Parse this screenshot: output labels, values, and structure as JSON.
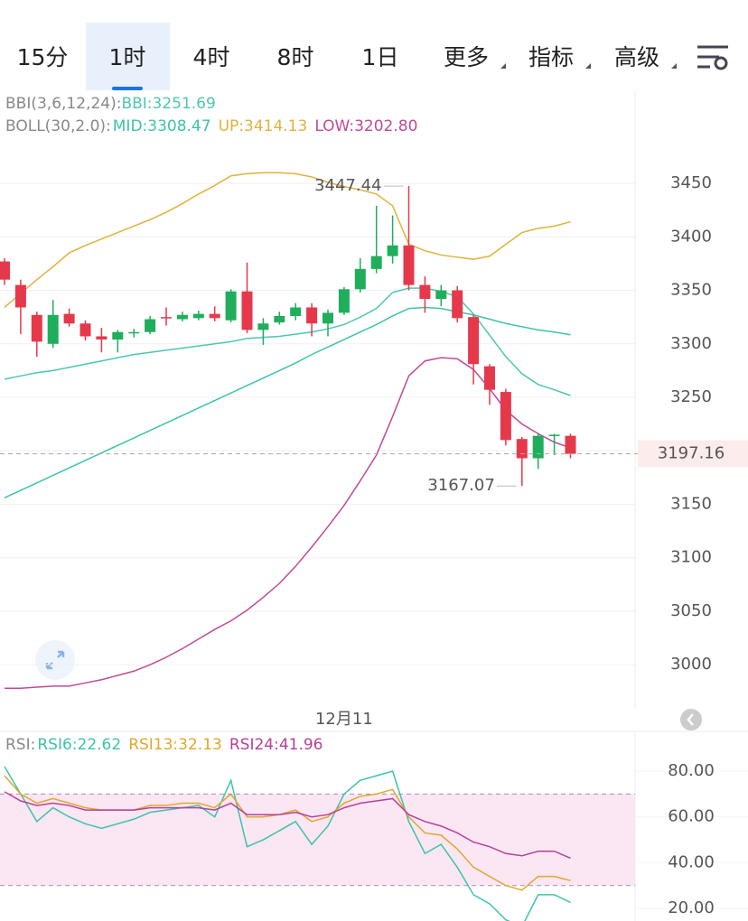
{
  "tabs": {
    "items": [
      "15分",
      "1时",
      "4时",
      "8时",
      "1日",
      "更多",
      "指标",
      "高级"
    ],
    "selected": 1
  },
  "chart_data": [
    {
      "type": "candlestick",
      "indicator_label": "BBI(3,6,12,24):",
      "boll_label": "BOLL(30,2.0):",
      "categories": [
        null,
        null,
        null,
        null,
        null,
        null,
        null,
        null,
        null,
        null,
        null,
        null,
        null,
        null,
        null,
        null,
        null,
        null,
        null,
        null,
        null,
        "12月11",
        null,
        null,
        null,
        null,
        null,
        null,
        null,
        null,
        null,
        null,
        null,
        null,
        null,
        null
      ],
      "open": [
        3377,
        3355,
        3327,
        3300,
        3328,
        3319,
        3307,
        3304,
        3310,
        3311,
        3325,
        3323,
        3324,
        3328,
        3322,
        3349,
        3313,
        3320,
        3326,
        3334,
        3319,
        3329,
        3351,
        3370,
        3382,
        3392,
        3355,
        3342,
        3350,
        3325,
        3279,
        3255,
        3211,
        3193,
        3214,
        3214
      ],
      "high": [
        3380,
        3360,
        3330,
        3341,
        3333,
        3322,
        3315,
        3313,
        3314,
        3326,
        3334,
        3330,
        3331,
        3335,
        3351,
        3376,
        3324,
        3330,
        3338,
        3338,
        3332,
        3353,
        3380,
        3429,
        3420,
        3447.44,
        3363,
        3355,
        3354,
        3327,
        3281,
        3258,
        3213,
        3216,
        3216,
        3216
      ],
      "low": [
        3355,
        3309,
        3288,
        3296,
        3316,
        3303,
        3292,
        3292,
        3306,
        3309,
        3317,
        3321,
        3322,
        3321,
        3320,
        3310,
        3299,
        3318,
        3322,
        3307,
        3307,
        3327,
        3348,
        3366,
        3375,
        3350,
        3329,
        3335,
        3320,
        3262,
        3243,
        3205,
        3167.07,
        3183,
        3196,
        3193
      ],
      "close": [
        3360,
        3334,
        3302,
        3327,
        3319,
        3307,
        3304,
        3311,
        3311,
        3323,
        3324,
        3327,
        3328,
        3324,
        3349,
        3313,
        3319,
        3326,
        3334,
        3319,
        3329,
        3351,
        3370,
        3382,
        3392,
        3355,
        3342,
        3350,
        3324,
        3281,
        3257,
        3210,
        3193,
        3214,
        3215,
        3197.16
      ],
      "up_color": "#1fae5c",
      "down_color": "#e5394b",
      "series": [
        {
          "name": "BBI:3251.69",
          "color": "#4cc7b0",
          "values": [
            3267,
            3270,
            3273,
            3275,
            3278,
            3281,
            3284,
            3287,
            3290,
            3292,
            3294,
            3296,
            3298,
            3300,
            3302,
            3305,
            3306,
            3307,
            3309,
            3311,
            3314,
            3318,
            3325,
            3333,
            3348,
            3352,
            3352,
            3349,
            3344,
            3328,
            3308,
            3288,
            3272,
            3262,
            3257,
            3251.69
          ]
        },
        {
          "name": "MID:3308.47",
          "color": "#3cc4a8",
          "values": [
            3156,
            3163,
            3170,
            3177,
            3184,
            3191,
            3198,
            3205,
            3212,
            3219,
            3226,
            3233,
            3240,
            3247,
            3254,
            3261,
            3268,
            3275,
            3282,
            3290,
            3297,
            3304,
            3311,
            3318,
            3326,
            3333,
            3334,
            3333,
            3330,
            3327,
            3323,
            3319,
            3316,
            3313,
            3311,
            3308.47
          ]
        },
        {
          "name": "UP:3414.13",
          "color": "#e0b23a",
          "values": [
            3334,
            3347,
            3360,
            3372,
            3385,
            3392,
            3398,
            3404,
            3410,
            3416,
            3423,
            3431,
            3440,
            3448,
            3457,
            3459,
            3460,
            3460,
            3459,
            3456,
            3451,
            3447,
            3444,
            3440,
            3429,
            3393,
            3387,
            3383,
            3381,
            3379,
            3382,
            3393,
            3404,
            3408,
            3410,
            3414.13
          ]
        },
        {
          "name": "LOW:3202.80",
          "color": "#c04a98",
          "values": [
            2978,
            2978,
            2979,
            2980,
            2980,
            2983,
            2986,
            2990,
            2994,
            3000,
            3007,
            3015,
            3024,
            3033,
            3041,
            3051,
            3063,
            3076,
            3092,
            3110,
            3129,
            3149,
            3172,
            3196,
            3232,
            3270,
            3284,
            3287,
            3286,
            3276,
            3258,
            3238,
            3225,
            3216,
            3208,
            3202.8
          ]
        }
      ],
      "last_price": 3197.16,
      "ylim": [
        2963,
        3537
      ],
      "yticks": [
        3000,
        3050,
        3100,
        3150,
        3200,
        3250,
        3300,
        3350,
        3400,
        3450
      ],
      "grid": true
    },
    {
      "type": "line",
      "title": "RSI:",
      "series": [
        {
          "name": "RSI6:22.62",
          "color": "#3cc4a8",
          "values": [
            82,
            70,
            58,
            64,
            60,
            57,
            55,
            57,
            59,
            62,
            63,
            64,
            65,
            60,
            76,
            47,
            50,
            54,
            58,
            48,
            56,
            70,
            76,
            78,
            80,
            58,
            44,
            48,
            38,
            26,
            22,
            15,
            12,
            26,
            26,
            22.62
          ]
        },
        {
          "name": "RSI13:32.13",
          "color": "#e0a82a",
          "values": [
            78,
            70,
            66,
            68,
            66,
            64,
            63,
            63,
            63,
            65,
            65,
            66,
            66,
            64,
            70,
            60,
            60,
            61,
            63,
            58,
            60,
            66,
            69,
            70,
            72,
            60,
            53,
            52,
            46,
            38,
            34,
            30,
            28,
            34,
            34,
            32.13
          ]
        },
        {
          "name": "RSI24:41.96",
          "color": "#b8409a",
          "values": [
            71,
            67,
            65,
            66,
            65,
            63,
            63,
            63,
            63,
            64,
            64,
            64,
            64,
            63,
            66,
            61,
            61,
            61,
            62,
            60,
            61,
            64,
            66,
            67,
            68,
            61,
            58,
            56,
            53,
            49,
            47,
            44,
            43,
            45,
            45,
            41.96
          ]
        }
      ],
      "overbought": 70,
      "oversold": 30,
      "ylim": [
        14.5,
        96.6
      ],
      "yticks": [
        {
          "value": 20,
          "label": "20.00"
        },
        {
          "value": 40,
          "label": "40.00"
        },
        {
          "value": 60,
          "label": "60.00"
        },
        {
          "value": 80,
          "label": "80.00"
        }
      ],
      "grid": true
    }
  ]
}
